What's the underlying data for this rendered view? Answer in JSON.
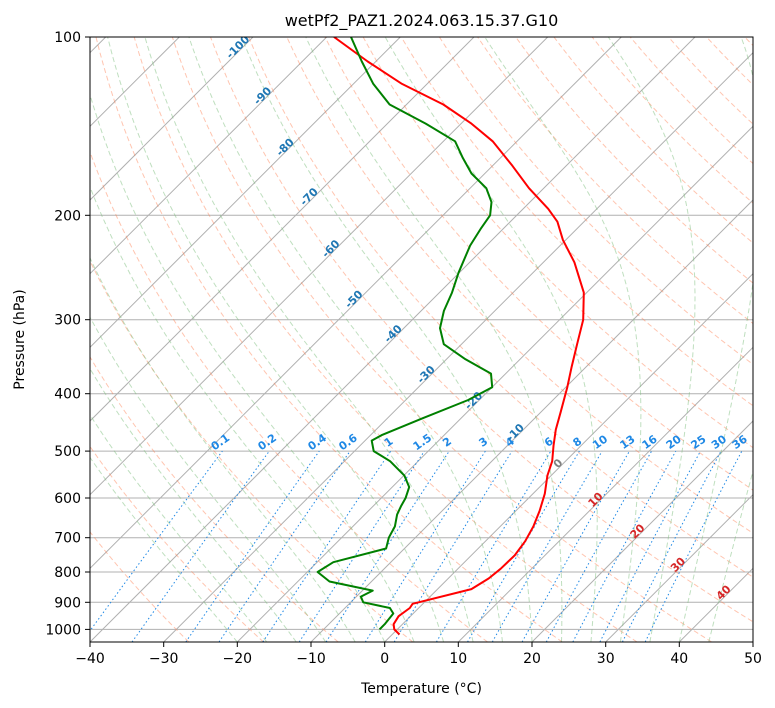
{
  "chart_data": {
    "type": "line",
    "title": "wetPf2_PAZ1.2024.063.15.37.G10",
    "xlabel": "Temperature (°C)",
    "ylabel": "Pressure (hPa)",
    "xlim": [
      -40,
      50
    ],
    "ylim": [
      1050,
      100
    ],
    "y_scale": "log",
    "x_ticks": [
      -40,
      -30,
      -20,
      -10,
      0,
      10,
      20,
      30,
      40,
      50
    ],
    "y_ticks": [
      1000,
      900,
      800,
      700,
      600,
      500,
      400,
      300,
      200,
      100
    ],
    "grid": true,
    "skew": "skew-T log-P",
    "colors": {
      "temperature": "#ff0000",
      "dewpoint": "#008000",
      "isotherm_labels": "#1f77b4",
      "mixing_ratio": "#1e88e5",
      "dry_adiabat": "#ff7f50",
      "moist_adiabat": "#7fbf7f",
      "warm_labels": "#d62728",
      "zero_label": "#808080"
    },
    "isotherm_labels": [
      {
        "t": -100,
        "p": 105
      },
      {
        "t": -90,
        "p": 127
      },
      {
        "t": -80,
        "p": 155
      },
      {
        "t": -70,
        "p": 188
      },
      {
        "t": -60,
        "p": 230
      },
      {
        "t": -50,
        "p": 280
      },
      {
        "t": -40,
        "p": 320
      },
      {
        "t": -30,
        "p": 375
      },
      {
        "t": -20,
        "p": 415
      },
      {
        "t": -10,
        "p": 470
      }
    ],
    "warm_isotherm_labels": [
      {
        "t": 0,
        "p": 530,
        "color": "zero"
      },
      {
        "t": 10,
        "p": 610,
        "color": "warm"
      },
      {
        "t": 20,
        "p": 690,
        "color": "warm"
      },
      {
        "t": 30,
        "p": 785,
        "color": "warm"
      },
      {
        "t": 40,
        "p": 875,
        "color": "warm"
      }
    ],
    "mixing_ratio_labels": [
      "0.1",
      "0.2",
      "0.4",
      "0.6",
      "1",
      "1.5",
      "2",
      "3",
      "4",
      "6",
      "8",
      "10",
      "13",
      "16",
      "20",
      "25",
      "30",
      "36"
    ],
    "mixing_ratio_values": [
      0.1,
      0.2,
      0.4,
      0.6,
      1,
      1.5,
      2,
      3,
      4,
      6,
      8,
      10,
      13,
      16,
      20,
      25,
      30,
      36
    ],
    "series": [
      {
        "id": "temperature",
        "points": [
          [
            1.0,
            1020
          ],
          [
            -0.4,
            1000
          ],
          [
            -1.2,
            980
          ],
          [
            -1.6,
            950
          ],
          [
            -1.2,
            920
          ],
          [
            -1.4,
            905
          ],
          [
            4.6,
            855
          ],
          [
            5.5,
            820
          ],
          [
            5.8,
            790
          ],
          [
            5.9,
            750
          ],
          [
            5.4,
            710
          ],
          [
            4.5,
            670
          ],
          [
            3.2,
            630
          ],
          [
            1.6,
            590
          ],
          [
            -0.5,
            550
          ],
          [
            -1.8,
            520
          ],
          [
            -3.7,
            490
          ],
          [
            -5.6,
            460
          ],
          [
            -7.3,
            430
          ],
          [
            -9.8,
            390
          ],
          [
            -12.0,
            360
          ],
          [
            -14.3,
            330
          ],
          [
            -16.8,
            300
          ],
          [
            -20.4,
            270
          ],
          [
            -25.8,
            240
          ],
          [
            -30.4,
            220
          ],
          [
            -33.6,
            205
          ],
          [
            -36.6,
            195
          ],
          [
            -42.0,
            180
          ],
          [
            -47.3,
            165
          ],
          [
            -53.3,
            150
          ],
          [
            -58.6,
            140
          ],
          [
            -65.0,
            130
          ],
          [
            -73.4,
            120
          ],
          [
            -81.1,
            110
          ],
          [
            -89.0,
            100
          ]
        ]
      },
      {
        "id": "dewpoint",
        "points": [
          [
            -2.4,
            1000
          ],
          [
            -2.4,
            980
          ],
          [
            -2.7,
            940
          ],
          [
            -3.9,
            920
          ],
          [
            -8.3,
            900
          ],
          [
            -9.4,
            880
          ],
          [
            -8.6,
            860
          ],
          [
            -15.7,
            830
          ],
          [
            -18.6,
            800
          ],
          [
            -17.8,
            770
          ],
          [
            -12.5,
            730
          ],
          [
            -13.6,
            700
          ],
          [
            -14.3,
            670
          ],
          [
            -15.6,
            640
          ],
          [
            -16.2,
            620
          ],
          [
            -16.7,
            600
          ],
          [
            -17.7,
            575
          ],
          [
            -19.9,
            550
          ],
          [
            -23.8,
            520
          ],
          [
            -27.4,
            500
          ],
          [
            -29.1,
            480
          ],
          [
            -28.5,
            470
          ],
          [
            -25.2,
            440
          ],
          [
            -21.5,
            410
          ],
          [
            -20.0,
            390
          ],
          [
            -22.0,
            370
          ],
          [
            -27.4,
            350
          ],
          [
            -32.4,
            330
          ],
          [
            -35.1,
            310
          ],
          [
            -36.9,
            290
          ],
          [
            -38.3,
            270
          ],
          [
            -40.1,
            250
          ],
          [
            -42.2,
            225
          ],
          [
            -43.1,
            210
          ],
          [
            -43.6,
            200
          ],
          [
            -45.2,
            190
          ],
          [
            -47.8,
            180
          ],
          [
            -51.8,
            170
          ],
          [
            -55.1,
            160
          ],
          [
            -58.4,
            150
          ],
          [
            -64.8,
            140
          ],
          [
            -72.3,
            130
          ],
          [
            -77.3,
            120
          ],
          [
            -81.9,
            110
          ],
          [
            -86.7,
            100
          ]
        ]
      }
    ]
  }
}
